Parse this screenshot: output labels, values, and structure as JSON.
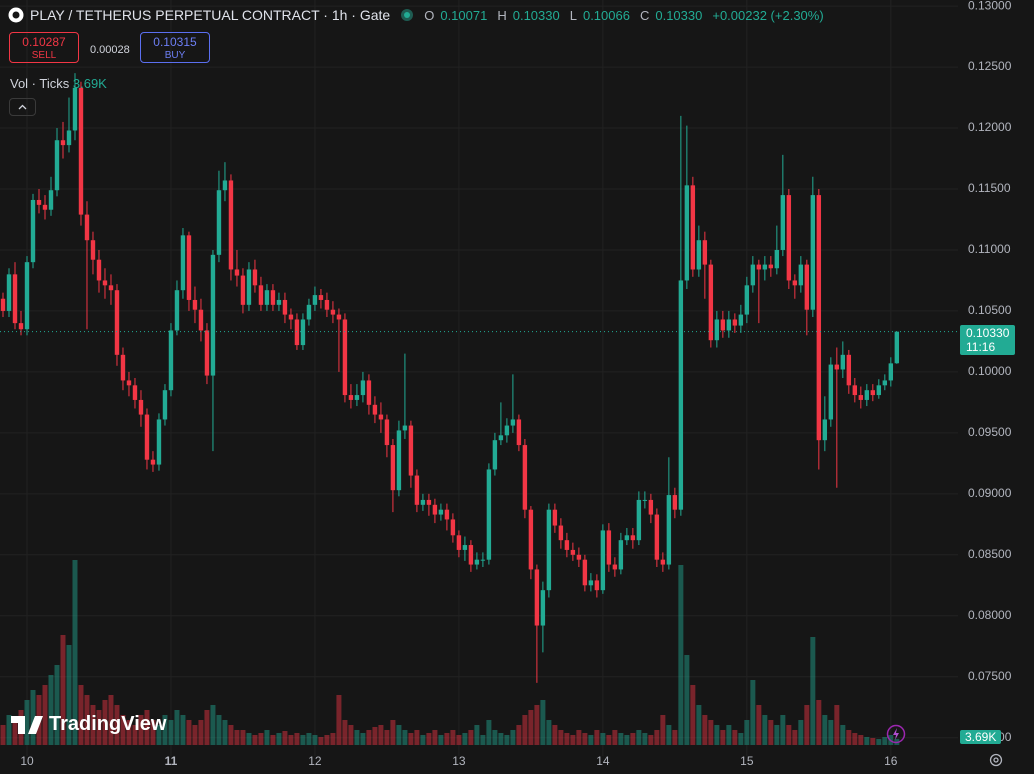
{
  "chart_data": {
    "type": "candlestick",
    "title": "PLAY / TETHERUS PERPETUAL CONTRACT · 1h · Gate",
    "open": [
      0.106,
      0.105,
      0.108,
      0.104,
      0.1035,
      0.109,
      0.1141,
      0.1137,
      0.1133,
      0.1149,
      0.119,
      0.1186,
      0.1198,
      0.1233,
      0.1129,
      0.1108,
      0.1092,
      0.1075,
      0.1071,
      0.1067,
      0.1014,
      0.0993,
      0.0989,
      0.0977,
      0.0965,
      0.0928,
      0.0924,
      0.0961,
      0.0985,
      0.1034,
      0.1067,
      0.1112,
      0.1059,
      0.1051,
      0.1034,
      0.0997,
      0.1096,
      0.1149,
      0.1157,
      0.1084,
      0.1079,
      0.1055,
      0.1084,
      0.1071,
      0.1055,
      0.1067,
      0.1055,
      0.1059,
      0.1047,
      0.1043,
      0.1022,
      0.1043,
      0.1055,
      0.1063,
      0.1059,
      0.1051,
      0.1047,
      0.1043,
      0.0981,
      0.0977,
      0.0981,
      0.0993,
      0.0973,
      0.0965,
      0.0961,
      0.094,
      0.0903,
      0.0952,
      0.0956,
      0.0915,
      0.0891,
      0.0895,
      0.0891,
      0.0883,
      0.0887,
      0.0879,
      0.0866,
      0.0854,
      0.0858,
      0.0842,
      0.0846,
      0.0846,
      0.092,
      0.0944,
      0.0948,
      0.0956,
      0.0961,
      0.094,
      0.0887,
      0.0838,
      0.0792,
      0.0821,
      0.0887,
      0.0874,
      0.0862,
      0.0854,
      0.085,
      0.0846,
      0.0825,
      0.0829,
      0.0821,
      0.087,
      0.0842,
      0.0838,
      0.0862,
      0.0866,
      0.0862,
      0.0895,
      0.0895,
      0.0883,
      0.0846,
      0.0842,
      0.0899,
      0.0887,
      0.1075,
      0.1153,
      0.1084,
      0.1108,
      0.1088,
      0.1026,
      0.1043,
      0.1034,
      0.1043,
      0.1038,
      0.1047,
      0.1071,
      0.1088,
      0.1084,
      0.1088,
      0.1085,
      0.11,
      0.1145,
      0.1075,
      0.1071,
      0.1088,
      0.1051,
      0.1145,
      0.0944,
      0.0961,
      0.1006,
      0.1002,
      0.1014,
      0.0989,
      0.0981,
      0.0977,
      0.0985,
      0.0981,
      0.0989,
      0.0993,
      0.10071
    ],
    "high": [
      0.1065,
      0.1085,
      0.109,
      0.105,
      0.1095,
      0.1146,
      0.115,
      0.1145,
      0.116,
      0.12,
      0.1205,
      0.1225,
      0.1245,
      0.1238,
      0.114,
      0.1115,
      0.11,
      0.1085,
      0.108,
      0.1072,
      0.102,
      0.1,
      0.0995,
      0.0985,
      0.097,
      0.0935,
      0.0966,
      0.099,
      0.104,
      0.1075,
      0.1118,
      0.1115,
      0.107,
      0.106,
      0.104,
      0.11,
      0.1165,
      0.1172,
      0.1162,
      0.11,
      0.1085,
      0.109,
      0.1092,
      0.1078,
      0.1072,
      0.1072,
      0.1065,
      0.1065,
      0.1052,
      0.1048,
      0.1048,
      0.106,
      0.107,
      0.1068,
      0.1065,
      0.1058,
      0.1052,
      0.1048,
      0.099,
      0.099,
      0.1,
      0.0998,
      0.098,
      0.0975,
      0.0965,
      0.0945,
      0.096,
      0.1015,
      0.096,
      0.092,
      0.09,
      0.09,
      0.0896,
      0.0892,
      0.0892,
      0.0884,
      0.087,
      0.0865,
      0.0862,
      0.0852,
      0.0852,
      0.0925,
      0.095,
      0.0975,
      0.0962,
      0.0998,
      0.0965,
      0.0945,
      0.089,
      0.0842,
      0.0828,
      0.0892,
      0.0892,
      0.088,
      0.0868,
      0.086,
      0.0856,
      0.085,
      0.0835,
      0.0834,
      0.0875,
      0.0876,
      0.0848,
      0.0868,
      0.0872,
      0.0872,
      0.0902,
      0.0902,
      0.09,
      0.0888,
      0.0852,
      0.093,
      0.0905,
      0.121,
      0.1202,
      0.116,
      0.112,
      0.1115,
      0.1092,
      0.105,
      0.105,
      0.105,
      0.1048,
      0.1055,
      0.1078,
      0.1095,
      0.1092,
      0.1095,
      0.1095,
      0.112,
      0.1178,
      0.115,
      0.108,
      0.1095,
      0.1092,
      0.116,
      0.115,
      0.098,
      0.1012,
      0.102,
      0.1025,
      0.1018,
      0.0995,
      0.0988,
      0.099,
      0.099,
      0.0994,
      0.0998,
      0.1012,
      0.1033
    ],
    "low": [
      0.1045,
      0.1045,
      0.1035,
      0.103,
      0.103,
      0.1085,
      0.113,
      0.1125,
      0.1128,
      0.1144,
      0.1175,
      0.118,
      0.119,
      0.112,
      0.1035,
      0.108,
      0.1065,
      0.106,
      0.1055,
      0.1005,
      0.0985,
      0.098,
      0.097,
      0.0955,
      0.092,
      0.0918,
      0.0919,
      0.0956,
      0.098,
      0.103,
      0.106,
      0.105,
      0.104,
      0.1025,
      0.099,
      0.0935,
      0.109,
      0.114,
      0.1075,
      0.107,
      0.1048,
      0.105,
      0.1065,
      0.105,
      0.105,
      0.105,
      0.105,
      0.104,
      0.1035,
      0.1018,
      0.1018,
      0.1038,
      0.105,
      0.1052,
      0.1045,
      0.104,
      0.1,
      0.0975,
      0.097,
      0.0972,
      0.0975,
      0.0965,
      0.0958,
      0.095,
      0.093,
      0.0885,
      0.0898,
      0.0945,
      0.0905,
      0.0885,
      0.0886,
      0.0882,
      0.0876,
      0.0878,
      0.087,
      0.086,
      0.0848,
      0.0845,
      0.0836,
      0.0838,
      0.084,
      0.0842,
      0.0915,
      0.094,
      0.0942,
      0.095,
      0.0935,
      0.088,
      0.083,
      0.0745,
      0.077,
      0.0815,
      0.0868,
      0.0855,
      0.0848,
      0.0845,
      0.084,
      0.082,
      0.082,
      0.0815,
      0.0818,
      0.0836,
      0.0832,
      0.0834,
      0.0858,
      0.0855,
      0.0858,
      0.0888,
      0.0876,
      0.084,
      0.0836,
      0.0838,
      0.088,
      0.0882,
      0.1068,
      0.1078,
      0.1078,
      0.106,
      0.102,
      0.102,
      0.1028,
      0.1028,
      0.1032,
      0.1032,
      0.104,
      0.1065,
      0.104,
      0.1075,
      0.1078,
      0.108,
      0.1095,
      0.1068,
      0.106,
      0.1065,
      0.103,
      0.1045,
      0.092,
      0.0935,
      0.0955,
      0.0905,
      0.0995,
      0.0982,
      0.0975,
      0.097,
      0.0972,
      0.0976,
      0.0978,
      0.0985,
      0.0988,
      0.10066
    ],
    "close": [
      0.105,
      0.108,
      0.104,
      0.1035,
      0.109,
      0.1141,
      0.1137,
      0.1133,
      0.1149,
      0.119,
      0.1186,
      0.1198,
      0.1233,
      0.1129,
      0.1108,
      0.1092,
      0.1075,
      0.1071,
      0.1067,
      0.1014,
      0.0993,
      0.0989,
      0.0977,
      0.0965,
      0.0928,
      0.0924,
      0.0961,
      0.0985,
      0.1034,
      0.1067,
      0.1112,
      0.1059,
      0.1051,
      0.1034,
      0.0997,
      0.1096,
      0.1149,
      0.1157,
      0.1084,
      0.1079,
      0.1055,
      0.1084,
      0.1071,
      0.1055,
      0.1067,
      0.1055,
      0.1059,
      0.1047,
      0.1043,
      0.1022,
      0.1043,
      0.1055,
      0.1063,
      0.1059,
      0.1051,
      0.1047,
      0.1043,
      0.0981,
      0.0977,
      0.0981,
      0.0993,
      0.0973,
      0.0965,
      0.0961,
      0.094,
      0.0903,
      0.0952,
      0.0956,
      0.0915,
      0.0891,
      0.0895,
      0.0891,
      0.0883,
      0.0887,
      0.0879,
      0.0866,
      0.0854,
      0.0858,
      0.0842,
      0.0846,
      0.0846,
      0.092,
      0.0944,
      0.0948,
      0.0956,
      0.0961,
      0.094,
      0.0887,
      0.0838,
      0.0792,
      0.0821,
      0.0887,
      0.0874,
      0.0862,
      0.0854,
      0.085,
      0.0846,
      0.0825,
      0.0829,
      0.0821,
      0.087,
      0.0842,
      0.0838,
      0.0862,
      0.0866,
      0.0862,
      0.0895,
      0.0895,
      0.0883,
      0.0846,
      0.0842,
      0.0899,
      0.0887,
      0.1075,
      0.1153,
      0.1084,
      0.1108,
      0.1088,
      0.1026,
      0.1043,
      0.1034,
      0.1043,
      0.1038,
      0.1047,
      0.1071,
      0.1088,
      0.1084,
      0.1088,
      0.1085,
      0.11,
      0.1145,
      0.1075,
      0.1071,
      0.1088,
      0.1051,
      0.1145,
      0.0944,
      0.0961,
      0.1006,
      0.1002,
      0.1014,
      0.0989,
      0.0981,
      0.0977,
      0.0985,
      0.0981,
      0.0989,
      0.0993,
      0.1007,
      0.1033
    ],
    "volume": [
      12000,
      18000,
      15000,
      21000,
      27000,
      33000,
      30000,
      36000,
      42000,
      48000,
      66000,
      60000,
      111000,
      36000,
      30000,
      24000,
      21000,
      27000,
      30000,
      24000,
      18000,
      15000,
      12000,
      18000,
      21000,
      15000,
      12000,
      18000,
      15000,
      21000,
      18000,
      15000,
      12000,
      15000,
      21000,
      24000,
      18000,
      15000,
      12000,
      9000,
      9000,
      7200,
      6000,
      7200,
      9000,
      6000,
      7200,
      8400,
      6000,
      7200,
      6000,
      7200,
      6000,
      4800,
      6000,
      7200,
      30000,
      15000,
      12000,
      9000,
      7200,
      9000,
      10800,
      12000,
      9000,
      15000,
      12000,
      9000,
      7200,
      9000,
      6000,
      7200,
      9000,
      6000,
      7200,
      9000,
      6000,
      7200,
      9000,
      12000,
      6000,
      15000,
      9000,
      7200,
      6000,
      9000,
      12000,
      18000,
      21000,
      24000,
      27000,
      15000,
      12000,
      9000,
      7200,
      6000,
      9000,
      7200,
      6000,
      9000,
      7200,
      6000,
      9000,
      7200,
      6000,
      7200,
      9000,
      7200,
      6000,
      9000,
      18000,
      12000,
      9000,
      108000,
      54000,
      36000,
      24000,
      18000,
      15000,
      12000,
      9000,
      12000,
      9000,
      7200,
      15000,
      39000,
      24000,
      18000,
      15000,
      12000,
      18000,
      12000,
      9000,
      15000,
      24000,
      64800,
      27000,
      18000,
      15000,
      24000,
      12000,
      9000,
      7200,
      6000,
      4800,
      4200,
      3600,
      4800,
      6000,
      3690
    ],
    "xlim": [
      -0.5,
      159.2
    ],
    "xticks": [
      {
        "value": 4,
        "label": "10"
      },
      {
        "value": 28,
        "label": "11"
      },
      {
        "value": 52,
        "label": "12"
      },
      {
        "value": 76,
        "label": "13"
      },
      {
        "value": 100,
        "label": "14"
      },
      {
        "value": 124,
        "label": "15"
      },
      {
        "value": 148,
        "label": "16"
      }
    ],
    "ylim": [
      0.0685,
      0.1305
    ],
    "yticks": [
      {
        "value": 0.07,
        "label": "0.07000"
      },
      {
        "value": 0.075,
        "label": "0.07500"
      },
      {
        "value": 0.08,
        "label": "0.08000"
      },
      {
        "value": 0.085,
        "label": "0.08500"
      },
      {
        "value": 0.09,
        "label": "0.09000"
      },
      {
        "value": 0.095,
        "label": "0.09500"
      },
      {
        "value": 0.1,
        "label": "0.10000"
      },
      {
        "value": 0.105,
        "label": "0.10500"
      },
      {
        "value": 0.11,
        "label": "0.11000"
      },
      {
        "value": 0.115,
        "label": "0.11500"
      },
      {
        "value": 0.12,
        "label": "0.12000"
      },
      {
        "value": 0.125,
        "label": "0.12500"
      },
      {
        "value": 0.13,
        "label": "0.13000"
      }
    ],
    "grid": true,
    "up_color": "#22ab94",
    "down_color": "#f23645"
  },
  "ui": {
    "legend": [
      {
        "key": "O",
        "value": "0.10071"
      },
      {
        "key": "H",
        "value": "0.10330"
      },
      {
        "key": "L",
        "value": "0.10066"
      },
      {
        "key": "C",
        "value": "0.10330"
      }
    ],
    "change": "+0.00232 (+2.30%)",
    "sell": {
      "price": "0.10287",
      "label": "SELL"
    },
    "spread": "0.00028",
    "buy": {
      "price": "0.10315",
      "label": "BUY"
    },
    "volume_indicator": {
      "name": "Vol · Ticks",
      "value": "3.69K"
    },
    "last_price": {
      "price": "0.10330",
      "countdown": "11:16"
    },
    "volume_axis_label": "3.69K",
    "brand": "TradingView"
  }
}
